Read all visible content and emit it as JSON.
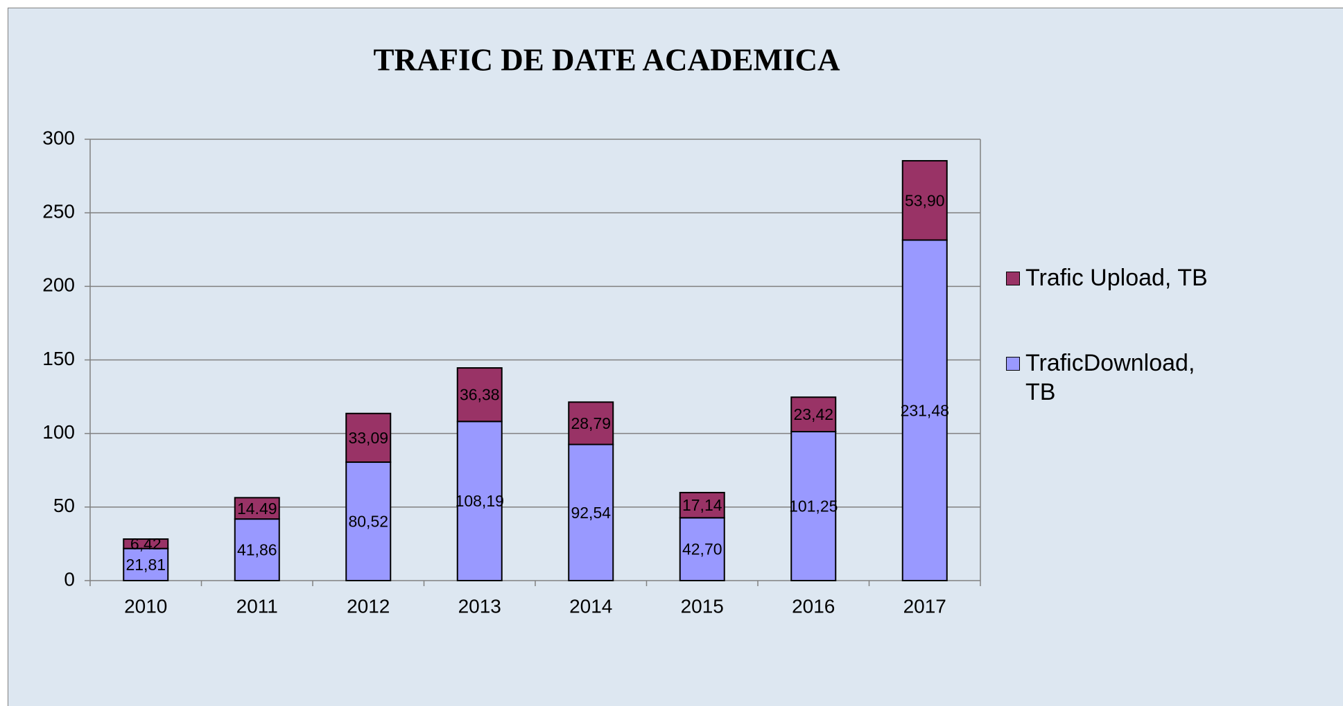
{
  "chart_data": {
    "type": "stacked-bar",
    "title": "TRAFIC DE DATE ACADEMICA",
    "categories": [
      "2010",
      "2011",
      "2012",
      "2013",
      "2014",
      "2015",
      "2016",
      "2017"
    ],
    "series": [
      {
        "name": "TraficDownload, TB",
        "color": "#9999ff",
        "values": [
          21.81,
          41.86,
          80.52,
          108.19,
          92.54,
          42.7,
          101.25,
          231.48
        ],
        "value_labels": [
          "21,81",
          "41,86",
          "80,52",
          "108,19",
          "92,54",
          "42,70",
          "101,25",
          "231,48"
        ]
      },
      {
        "name": "Trafic Upload, TB",
        "color": "#993366",
        "values": [
          6.42,
          14.49,
          33.09,
          36.38,
          28.79,
          17.14,
          23.42,
          53.9
        ],
        "value_labels": [
          "6,42",
          "14.49",
          "33,09",
          "36,38",
          "28,79",
          "17,14",
          "23,42",
          "53,90"
        ]
      }
    ],
    "ylim": [
      0,
      300
    ],
    "yticks": [
      0,
      50,
      100,
      150,
      200,
      250,
      300
    ],
    "grid": true,
    "legend": "right"
  }
}
